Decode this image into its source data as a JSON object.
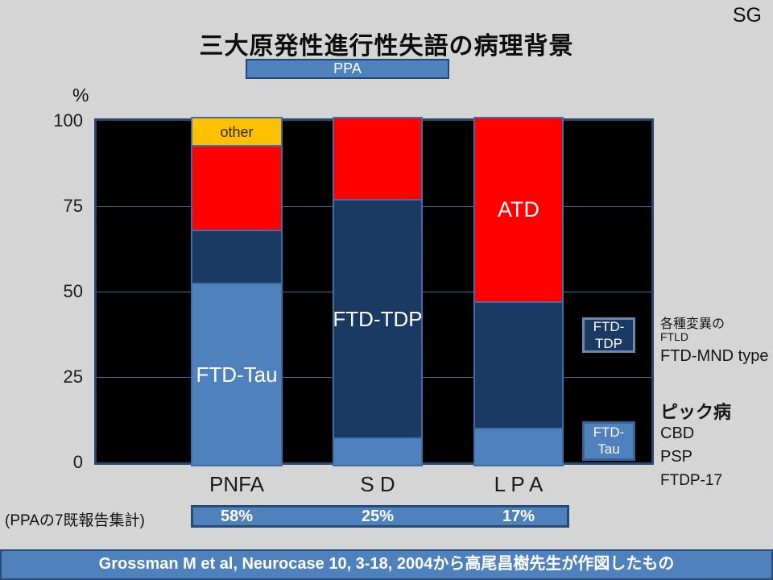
{
  "slide": {
    "corner_tag": "SG",
    "ppa_banner": "PPA",
    "summary_note": "(PPAの7既報告集計)",
    "footer": "Grossman M et al, Neurocase 10, 3-18, 2004から高尾昌樹先生が作図したもの"
  },
  "chart_data": {
    "type": "bar",
    "stacked": true,
    "title": "三大原発性進行性失語の病理背景",
    "ylabel": "%",
    "ylim": [
      0,
      100
    ],
    "yticks": [
      "100",
      "75",
      "50",
      "25",
      "0"
    ],
    "gridlines_pct": [
      25,
      50,
      75
    ],
    "plot_background": "#000000",
    "grid": true,
    "legend_position": "none",
    "categories": [
      "PNFA",
      "S D",
      "L P A"
    ],
    "series": [
      {
        "name": "other",
        "color": "#ffc000",
        "values": [
          4,
          0,
          0
        ]
      },
      {
        "name": "ATD",
        "color": "#ff0000",
        "values": [
          27,
          25,
          50
        ]
      },
      {
        "name": "FTD-TDP",
        "color": "#1a3a64",
        "values": [
          17,
          67,
          39
        ]
      },
      {
        "name": "FTD-Tau",
        "color": "#4f81bd",
        "values": [
          52,
          8,
          11
        ]
      }
    ],
    "segment_labels": [
      {
        "bar": 0,
        "series": "other",
        "text": "other",
        "size": 18,
        "color": "#332a00"
      },
      {
        "bar": 0,
        "series": "FTD-Tau",
        "text": "FTD-Tau",
        "size": 26,
        "color": "#ffffff"
      },
      {
        "bar": 1,
        "series": "FTD-TDP",
        "text": "FTD-TDP",
        "size": 26,
        "color": "#ffffff"
      },
      {
        "bar": 2,
        "series": "ATD",
        "text": "ATD",
        "size": 27,
        "color": "#ffffff"
      }
    ],
    "floating_boxes": [
      {
        "text": "FTD-\nTDP",
        "series": "FTD-TDP",
        "fill": "#1a3a64",
        "border": "#6d89ab",
        "span_pct": [
          32,
          42.5
        ]
      },
      {
        "text": "FTD-\nTau",
        "series": "FTD-Tau",
        "fill": "#4f81bd",
        "border": "#38639a",
        "span_pct": [
          0.5,
          12
        ]
      }
    ],
    "summary_values": [
      "58%",
      "25%",
      "17%"
    ]
  },
  "side_notes": {
    "variants_line1": "各種変異の",
    "variants_line2": "FTLD",
    "variants_line3": "FTD-MND type",
    "tau_line1": "ピック病",
    "tau_line2": "CBD",
    "tau_line3": "PSP",
    "tau_line4": "FTDP-17"
  },
  "colors": {
    "accent_blue": "#4f81bd",
    "border_navy": "#1f497d",
    "bar_border_blue": "#3f6da6",
    "background_gray": "#d5d5d5"
  }
}
